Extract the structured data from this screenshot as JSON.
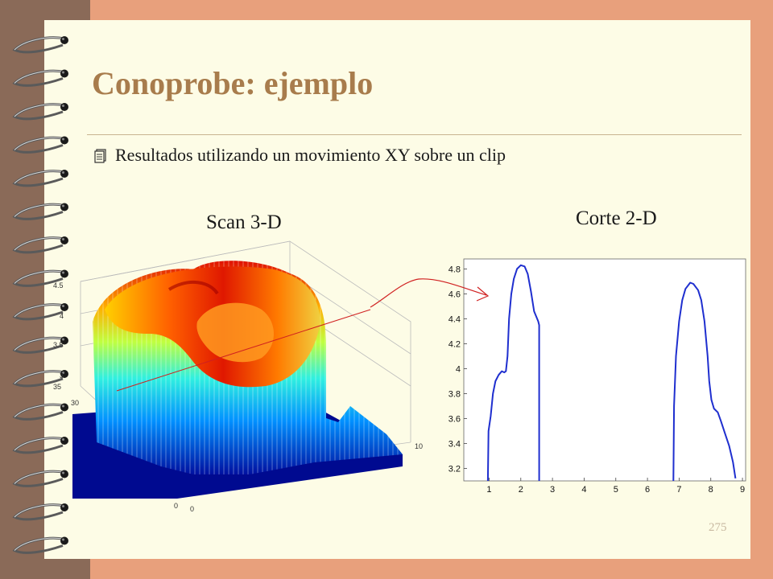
{
  "slide": {
    "title": "Conoprobe: ejemplo",
    "bullet": "Resultados utilizando un movimiento XY sobre un clip",
    "page_number": "275"
  },
  "figure_3d": {
    "label": "Scan 3-D",
    "z_ticks": [
      "4.5",
      "4",
      "3.5",
      "3"
    ],
    "y_ticks": [
      "35",
      "30"
    ],
    "x_ticks": [
      "10"
    ],
    "bottom_ticks": [
      "0",
      "0"
    ]
  },
  "figure_2d": {
    "label": "Corte 2-D"
  },
  "chart_data": {
    "type": "line",
    "title": "",
    "xlabel": "",
    "ylabel": "",
    "xlim": [
      0.2,
      9.1
    ],
    "ylim": [
      3.1,
      4.88
    ],
    "x_ticks": [
      1,
      2,
      3,
      4,
      5,
      6,
      7,
      8,
      9
    ],
    "y_ticks": [
      3.2,
      3.4,
      3.6,
      3.8,
      4,
      4.2,
      4.4,
      4.6,
      4.8
    ],
    "grid": false,
    "color": "#1f2fcf",
    "series": [
      {
        "points": [
          [
            0.96,
            3.1
          ],
          [
            0.98,
            3.5
          ],
          [
            1.05,
            3.62
          ],
          [
            1.12,
            3.8
          ],
          [
            1.2,
            3.9
          ],
          [
            1.3,
            3.95
          ],
          [
            1.4,
            3.98
          ],
          [
            1.48,
            3.97
          ],
          [
            1.53,
            3.98
          ],
          [
            1.58,
            4.1
          ],
          [
            1.63,
            4.4
          ],
          [
            1.7,
            4.6
          ],
          [
            1.78,
            4.72
          ],
          [
            1.88,
            4.8
          ],
          [
            2.0,
            4.83
          ],
          [
            2.12,
            4.82
          ],
          [
            2.22,
            4.76
          ],
          [
            2.32,
            4.62
          ],
          [
            2.42,
            4.46
          ],
          [
            2.55,
            4.38
          ],
          [
            2.58,
            4.35
          ],
          [
            2.58,
            3.1
          ]
        ]
      },
      {
        "points": [
          [
            6.82,
            3.1
          ],
          [
            6.84,
            3.7
          ],
          [
            6.9,
            4.1
          ],
          [
            7.0,
            4.38
          ],
          [
            7.1,
            4.55
          ],
          [
            7.2,
            4.64
          ],
          [
            7.35,
            4.69
          ],
          [
            7.45,
            4.68
          ],
          [
            7.6,
            4.63
          ],
          [
            7.7,
            4.55
          ],
          [
            7.8,
            4.38
          ],
          [
            7.9,
            4.1
          ],
          [
            7.95,
            3.9
          ],
          [
            8.02,
            3.75
          ],
          [
            8.1,
            3.68
          ],
          [
            8.22,
            3.65
          ],
          [
            8.32,
            3.58
          ],
          [
            8.45,
            3.48
          ],
          [
            8.58,
            3.38
          ],
          [
            8.7,
            3.25
          ],
          [
            8.78,
            3.12
          ]
        ]
      }
    ]
  }
}
